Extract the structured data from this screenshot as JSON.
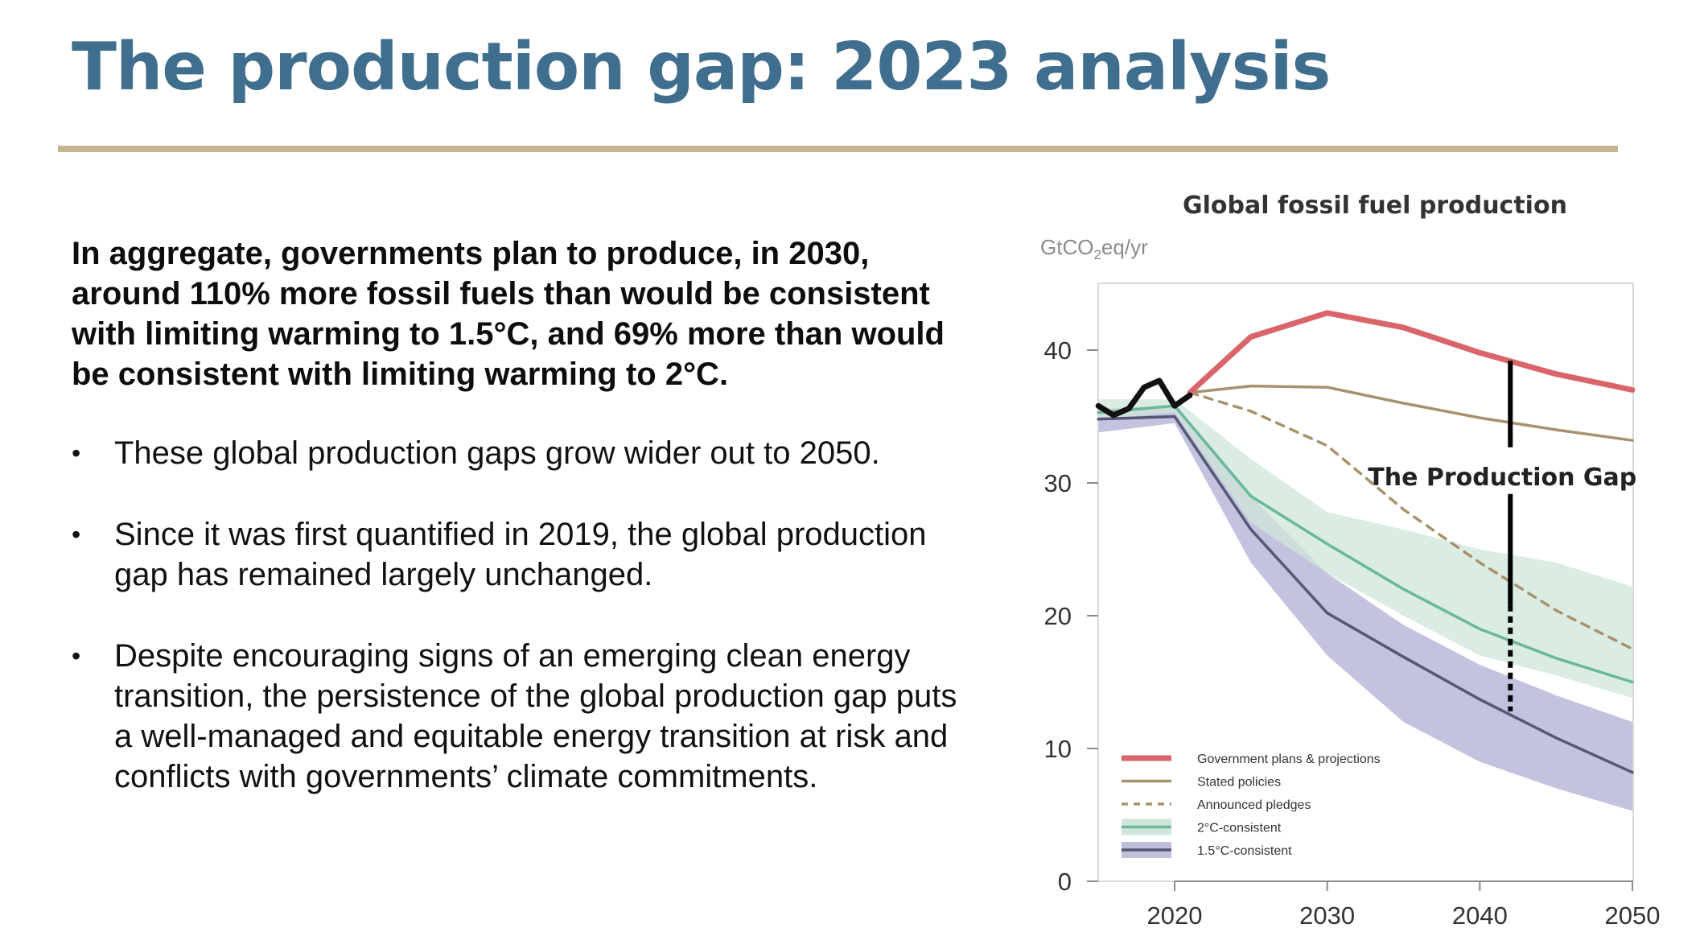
{
  "slide": {
    "title": "The production gap: 2023 analysis",
    "lead": "In aggregate, governments plan to produce, in 2030, around 110% more fossil fuels than would be consistent with limiting warming to 1.5°C, and 69% more than would be consistent with limiting warming to 2°C.",
    "bullets": [
      "These global production gaps grow wider out to 2050.",
      "Since it was first quantified in 2019, the global production gap has remained largely unchanged.",
      "Despite encouraging signs of an emerging clean energy transition, the persistence of the global production gap puts a well-managed and equitable energy transition at risk and conflicts with governments’ climate commitments."
    ],
    "colors": {
      "title": "#3f6e8e",
      "rule": "#c6b491"
    }
  },
  "chart_data": {
    "type": "line",
    "title": "Global fossil fuel production",
    "unit_prefix": "GtCO",
    "unit_sub": "2",
    "unit_suffix": "eq/yr",
    "xlabel": "",
    "ylabel": "",
    "xlim": [
      2015,
      2050
    ],
    "ylim": [
      0,
      45
    ],
    "x_ticks": [
      2020,
      2030,
      2040,
      2050
    ],
    "y_ticks": [
      0,
      10,
      20,
      30,
      40
    ],
    "grid": false,
    "legend_position": "bottom-left",
    "annotation": {
      "text": "The Production Gap",
      "x": 2042,
      "y_top": 39.2,
      "y_bottom": 12.8,
      "label_y": 30.5
    },
    "historical": {
      "color": "#111111",
      "points": [
        [
          2015,
          35.8
        ],
        [
          2016,
          35.1
        ],
        [
          2017,
          35.6
        ],
        [
          2018,
          37.2
        ],
        [
          2019,
          37.7
        ],
        [
          2020,
          35.8
        ],
        [
          2021,
          36.6
        ]
      ]
    },
    "series": [
      {
        "name": "Government plans & projections",
        "color": "#d9656a",
        "style": "thick",
        "points": [
          [
            2021,
            36.8
          ],
          [
            2025,
            41.0
          ],
          [
            2030,
            42.8
          ],
          [
            2035,
            41.7
          ],
          [
            2040,
            39.8
          ],
          [
            2045,
            38.2
          ],
          [
            2050,
            37.0
          ]
        ]
      },
      {
        "name": "Stated policies",
        "color": "#a8926d",
        "style": "solid",
        "points": [
          [
            2021,
            36.8
          ],
          [
            2025,
            37.3
          ],
          [
            2030,
            37.2
          ],
          [
            2035,
            36.0
          ],
          [
            2040,
            34.9
          ],
          [
            2045,
            34.0
          ],
          [
            2050,
            33.2
          ]
        ]
      },
      {
        "name": "Announced pledges",
        "color": "#a8926d",
        "style": "dashed",
        "points": [
          [
            2021,
            36.8
          ],
          [
            2025,
            35.4
          ],
          [
            2030,
            32.8
          ],
          [
            2035,
            28.0
          ],
          [
            2040,
            24.0
          ],
          [
            2045,
            20.4
          ],
          [
            2050,
            17.5
          ]
        ]
      },
      {
        "name": "2°C-consistent",
        "color": "#6ab79b",
        "band_color": "#cfe5d9",
        "style": "solid",
        "points": [
          [
            2015,
            35.3
          ],
          [
            2020,
            35.8
          ],
          [
            2025,
            29.0
          ],
          [
            2030,
            25.4
          ],
          [
            2035,
            22.0
          ],
          [
            2040,
            19.0
          ],
          [
            2045,
            16.8
          ],
          [
            2050,
            15.0
          ]
        ],
        "band_upper": [
          [
            2015,
            36.3
          ],
          [
            2020,
            36.3
          ],
          [
            2025,
            31.8
          ],
          [
            2030,
            27.8
          ],
          [
            2035,
            26.5
          ],
          [
            2040,
            25.0
          ],
          [
            2045,
            24.0
          ],
          [
            2050,
            22.2
          ]
        ],
        "band_lower": [
          [
            2015,
            34.8
          ],
          [
            2020,
            35.3
          ],
          [
            2025,
            27.0
          ],
          [
            2030,
            23.2
          ],
          [
            2035,
            20.0
          ],
          [
            2040,
            17.0
          ],
          [
            2045,
            15.5
          ],
          [
            2050,
            13.8
          ]
        ]
      },
      {
        "name": "1.5°C-consistent",
        "color": "#555875",
        "band_color": "#c0c0dd",
        "style": "solid",
        "points": [
          [
            2015,
            34.8
          ],
          [
            2020,
            35.0
          ],
          [
            2025,
            26.5
          ],
          [
            2030,
            20.2
          ],
          [
            2035,
            16.9
          ],
          [
            2040,
            13.7
          ],
          [
            2045,
            10.8
          ],
          [
            2050,
            8.2
          ]
        ],
        "band_upper": [
          [
            2015,
            35.6
          ],
          [
            2020,
            35.8
          ],
          [
            2025,
            29.0
          ],
          [
            2030,
            23.2
          ],
          [
            2035,
            19.3
          ],
          [
            2040,
            16.3
          ],
          [
            2045,
            14.0
          ],
          [
            2050,
            12.0
          ]
        ],
        "band_lower": [
          [
            2015,
            33.8
          ],
          [
            2020,
            34.5
          ],
          [
            2025,
            24.0
          ],
          [
            2030,
            17.0
          ],
          [
            2035,
            12.0
          ],
          [
            2040,
            9.0
          ],
          [
            2045,
            7.0
          ],
          [
            2050,
            5.3
          ]
        ]
      }
    ]
  }
}
